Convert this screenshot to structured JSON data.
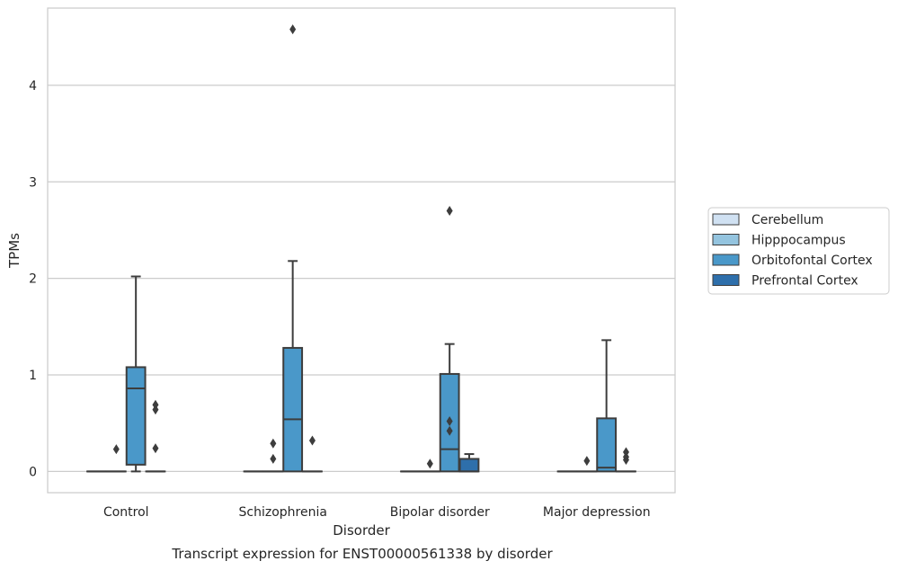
{
  "chart_data": {
    "type": "box",
    "title": "",
    "caption": "Transcript expression for ENST00000561338 by disorder",
    "xlabel": "Disorder",
    "ylabel": "TPMs",
    "ylim": [
      -0.22,
      4.8
    ],
    "yticks": [
      0,
      1,
      2,
      3,
      4
    ],
    "grid": "horizontal",
    "legend_position": "right",
    "categories": [
      "Control",
      "Schizophrenia",
      "Bipolar disorder",
      "Major depression"
    ],
    "series": [
      {
        "name": "Cerebellum",
        "color": "#d0e1f2",
        "boxes": [
          {
            "min": 0,
            "q1": 0,
            "median": 0,
            "q3": 0,
            "max": 0,
            "outliers": []
          },
          {
            "min": 0,
            "q1": 0,
            "median": 0,
            "q3": 0,
            "max": 0,
            "outliers": []
          },
          {
            "min": 0,
            "q1": 0,
            "median": 0,
            "q3": 0,
            "max": 0,
            "outliers": []
          },
          {
            "min": 0,
            "q1": 0,
            "median": 0,
            "q3": 0,
            "max": 0,
            "outliers": []
          }
        ]
      },
      {
        "name": "Hipppocampus",
        "color": "#94c4df",
        "boxes": [
          {
            "min": 0,
            "q1": 0,
            "median": 0,
            "q3": 0,
            "max": 0,
            "outliers": [
              0.23
            ]
          },
          {
            "min": 0,
            "q1": 0,
            "median": 0,
            "q3": 0,
            "max": 0,
            "outliers": [
              0.13,
              0.29
            ]
          },
          {
            "min": 0,
            "q1": 0,
            "median": 0,
            "q3": 0,
            "max": 0,
            "outliers": [
              0.08
            ]
          },
          {
            "min": 0,
            "q1": 0,
            "median": 0,
            "q3": 0,
            "max": 0,
            "outliers": [
              0.11
            ]
          }
        ]
      },
      {
        "name": "Orbitofontal Cortex",
        "color": "#4a98c9",
        "boxes": [
          {
            "min": 0,
            "q1": 0.07,
            "median": 0.86,
            "q3": 1.08,
            "max": 2.02,
            "outliers": []
          },
          {
            "min": 0,
            "q1": 0,
            "median": 0.54,
            "q3": 1.28,
            "max": 2.18,
            "outliers": [
              4.58
            ]
          },
          {
            "min": 0,
            "q1": 0,
            "median": 0.23,
            "q3": 1.01,
            "max": 1.32,
            "outliers": [
              0.42,
              0.52,
              2.7
            ]
          },
          {
            "min": 0,
            "q1": 0,
            "median": 0.04,
            "q3": 0.55,
            "max": 1.36,
            "outliers": []
          }
        ]
      },
      {
        "name": "Prefrontal Cortex",
        "color": "#2e6fab",
        "boxes": [
          {
            "min": 0,
            "q1": 0,
            "median": 0,
            "q3": 0,
            "max": 0,
            "outliers": [
              0.24,
              0.64,
              0.69
            ]
          },
          {
            "min": 0,
            "q1": 0,
            "median": 0,
            "q3": 0,
            "max": 0,
            "outliers": [
              0.32
            ]
          },
          {
            "min": 0,
            "q1": 0,
            "median": 0,
            "q3": 0.13,
            "max": 0.18,
            "outliers": []
          },
          {
            "min": 0,
            "q1": 0,
            "median": 0,
            "q3": 0,
            "max": 0,
            "outliers": [
              0.12,
              0.15,
              0.2
            ]
          }
        ]
      }
    ]
  }
}
